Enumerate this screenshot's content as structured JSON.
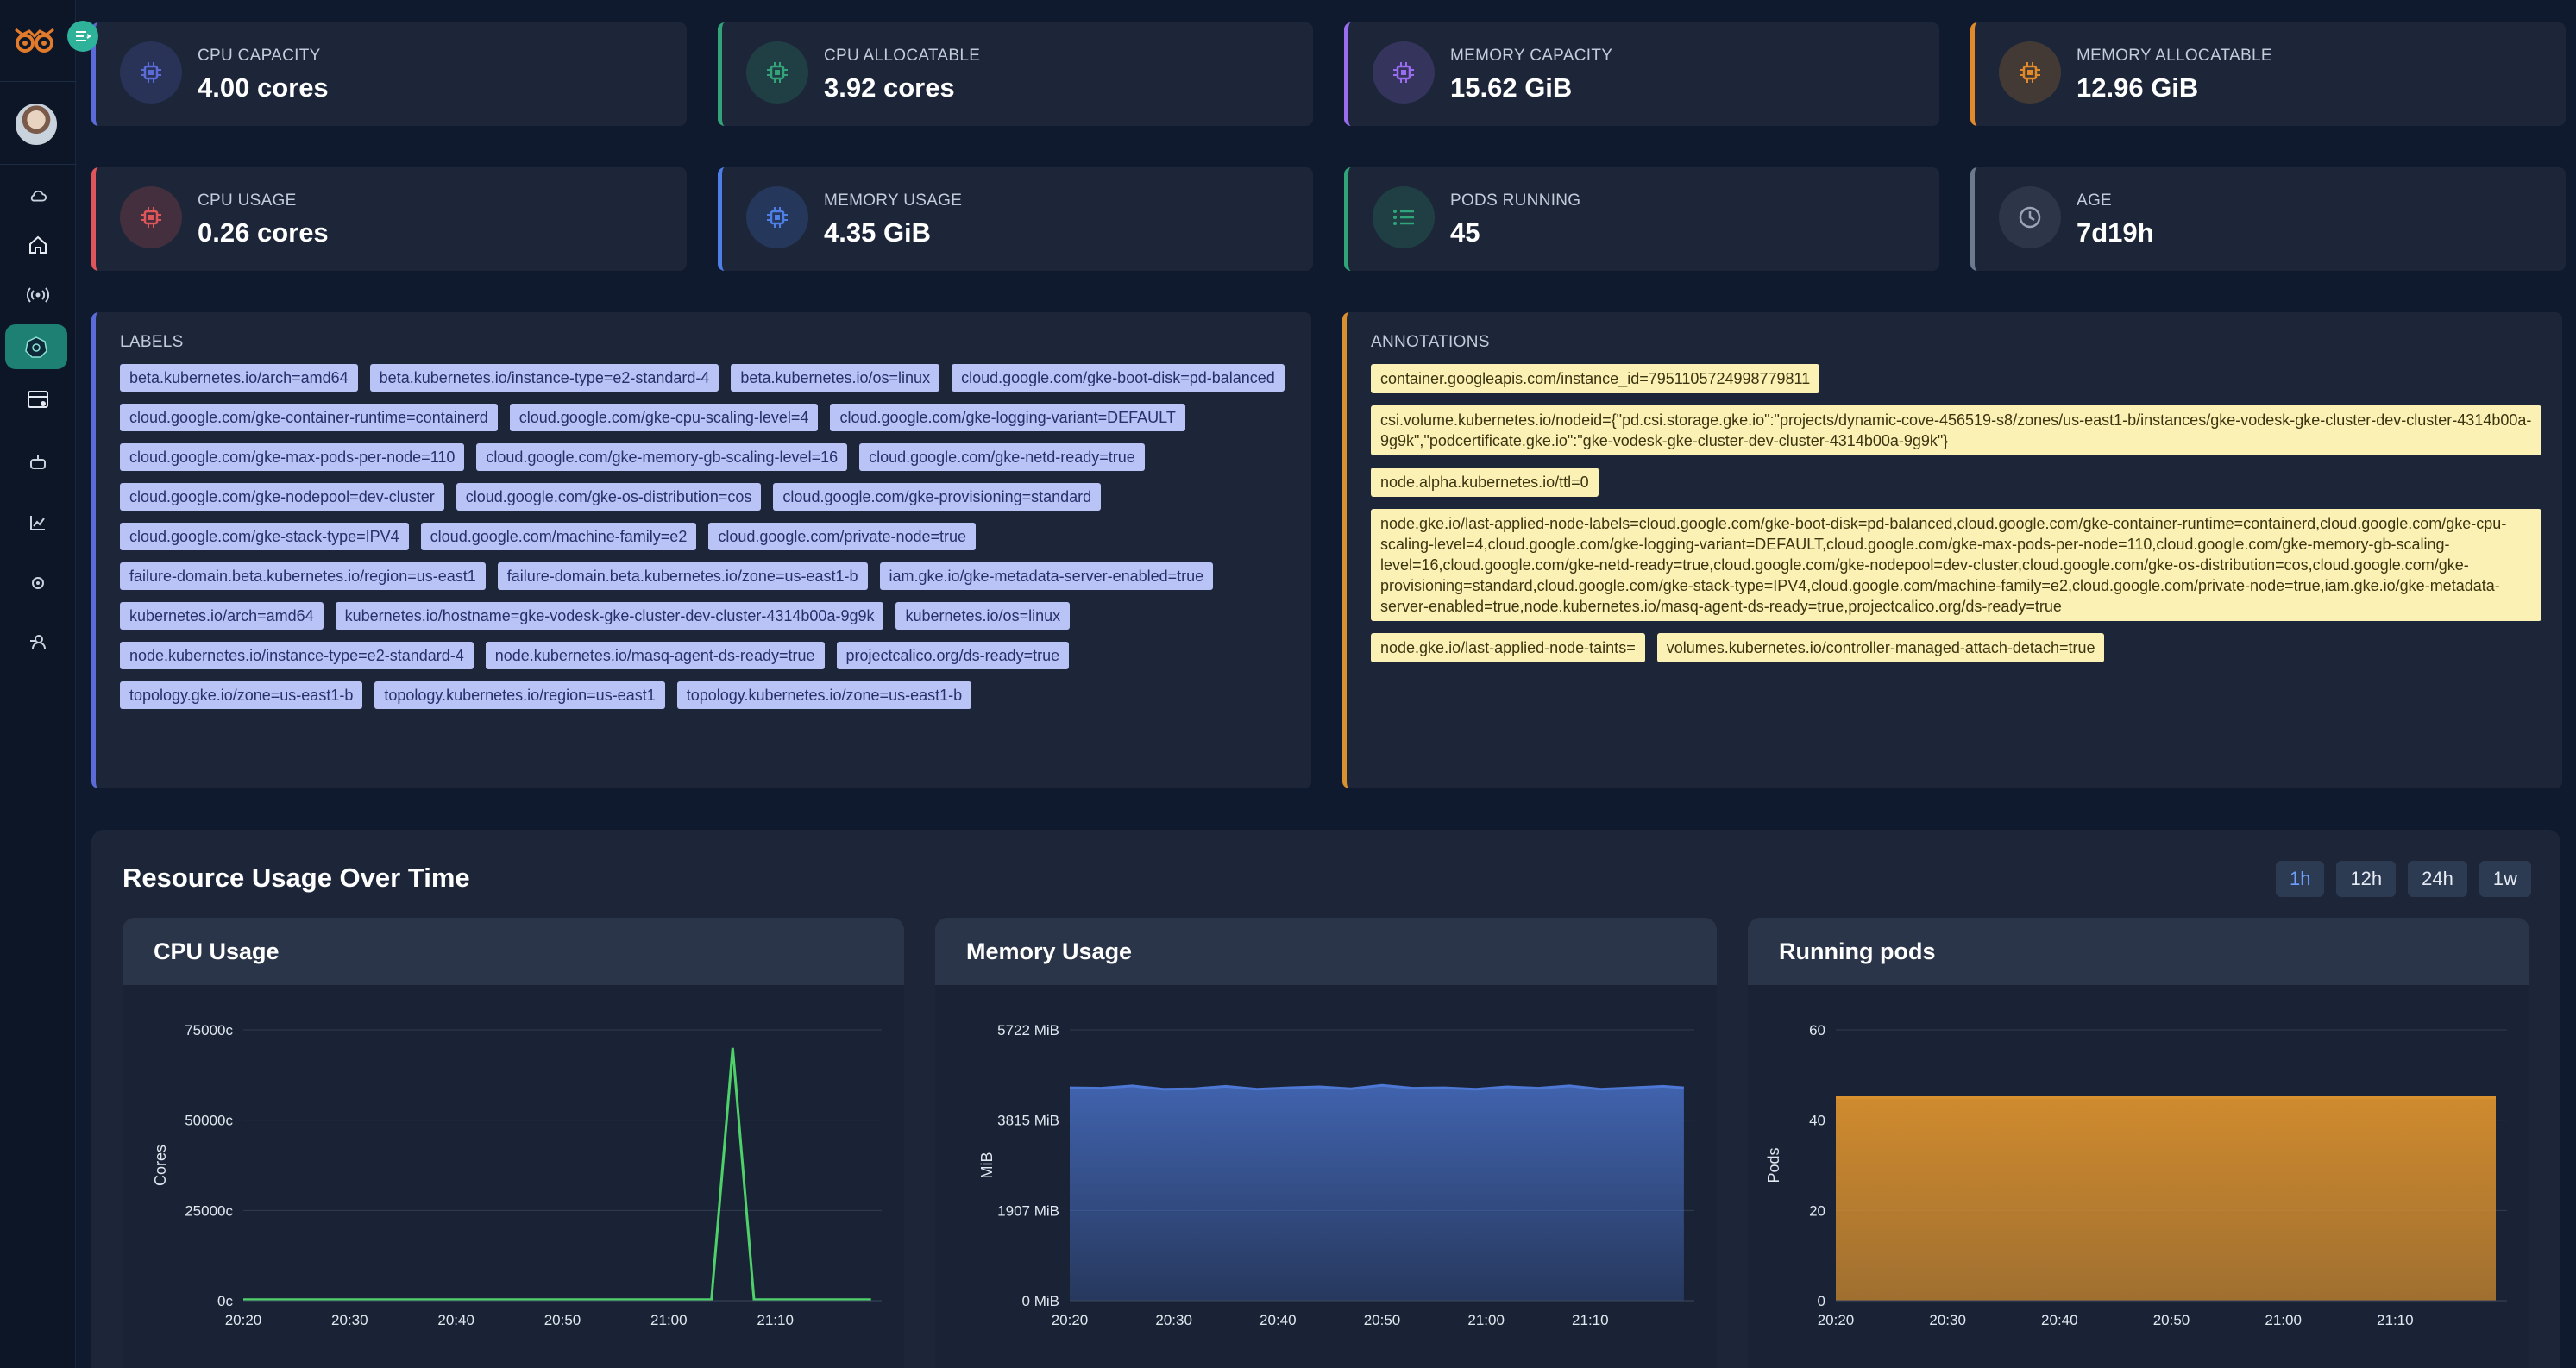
{
  "stats": [
    {
      "label": "CPU CAPACITY",
      "value": "4.00 cores",
      "icon": "chip-icon",
      "color": "#5b6bd8"
    },
    {
      "label": "CPU ALLOCATABLE",
      "value": "3.92 cores",
      "icon": "chip-icon",
      "color": "#34a37a"
    },
    {
      "label": "MEMORY CAPACITY",
      "value": "15.62 GiB",
      "icon": "chip-icon",
      "color": "#9a6cf0"
    },
    {
      "label": "MEMORY ALLOCATABLE",
      "value": "12.96 GiB",
      "icon": "chip-icon",
      "color": "#e08a2c"
    },
    {
      "label": "CPU USAGE",
      "value": "0.26 cores",
      "icon": "chip-icon",
      "color": "#e0555a"
    },
    {
      "label": "MEMORY USAGE",
      "value": "4.35 GiB",
      "icon": "chip-icon",
      "color": "#4d7fe6"
    },
    {
      "label": "PODS RUNNING",
      "value": "45",
      "icon": "list-icon",
      "color": "#2fa579"
    },
    {
      "label": "AGE",
      "value": "7d19h",
      "icon": "clock-icon",
      "color": "#6d7a8e"
    }
  ],
  "labels": {
    "title": "LABELS",
    "items": [
      "beta.kubernetes.io/arch=amd64",
      "beta.kubernetes.io/instance-type=e2-standard-4",
      "beta.kubernetes.io/os=linux",
      "cloud.google.com/gke-boot-disk=pd-balanced",
      "cloud.google.com/gke-container-runtime=containerd",
      "cloud.google.com/gke-cpu-scaling-level=4",
      "cloud.google.com/gke-logging-variant=DEFAULT",
      "cloud.google.com/gke-max-pods-per-node=110",
      "cloud.google.com/gke-memory-gb-scaling-level=16",
      "cloud.google.com/gke-netd-ready=true",
      "cloud.google.com/gke-nodepool=dev-cluster",
      "cloud.google.com/gke-os-distribution=cos",
      "cloud.google.com/gke-provisioning=standard",
      "cloud.google.com/gke-stack-type=IPV4",
      "cloud.google.com/machine-family=e2",
      "cloud.google.com/private-node=true",
      "failure-domain.beta.kubernetes.io/region=us-east1",
      "failure-domain.beta.kubernetes.io/zone=us-east1-b",
      "iam.gke.io/gke-metadata-server-enabled=true",
      "kubernetes.io/arch=amd64",
      "kubernetes.io/hostname=gke-vodesk-gke-cluster-dev-cluster-4314b00a-9g9k",
      "kubernetes.io/os=linux",
      "node.kubernetes.io/instance-type=e2-standard-4",
      "node.kubernetes.io/masq-agent-ds-ready=true",
      "projectcalico.org/ds-ready=true",
      "topology.gke.io/zone=us-east1-b",
      "topology.kubernetes.io/region=us-east1",
      "topology.kubernetes.io/zone=us-east1-b"
    ]
  },
  "annotations": {
    "title": "ANNOTATIONS",
    "items": [
      {
        "text": "container.googleapis.com/instance_id=7951105724998779811",
        "full": false
      },
      {
        "text": "csi.volume.kubernetes.io/nodeid={\"pd.csi.storage.gke.io\":\"projects/dynamic-cove-456519-s8/zones/us-east1-b/instances/gke-vodesk-gke-cluster-dev-cluster-4314b00a-9g9k\",\"podcertificate.gke.io\":\"gke-vodesk-gke-cluster-dev-cluster-4314b00a-9g9k\"}",
        "full": true
      },
      {
        "text": "node.alpha.kubernetes.io/ttl=0",
        "full": false
      },
      {
        "text": "node.gke.io/last-applied-node-labels=cloud.google.com/gke-boot-disk=pd-balanced,cloud.google.com/gke-container-runtime=containerd,cloud.google.com/gke-cpu-scaling-level=4,cloud.google.com/gke-logging-variant=DEFAULT,cloud.google.com/gke-max-pods-per-node=110,cloud.google.com/gke-memory-gb-scaling-level=16,cloud.google.com/gke-netd-ready=true,cloud.google.com/gke-nodepool=dev-cluster,cloud.google.com/gke-os-distribution=cos,cloud.google.com/gke-provisioning=standard,cloud.google.com/gke-stack-type=IPV4,cloud.google.com/machine-family=e2,cloud.google.com/private-node=true,iam.gke.io/gke-metadata-server-enabled=true,node.kubernetes.io/masq-agent-ds-ready=true,projectcalico.org/ds-ready=true",
        "full": true
      },
      {
        "text": "node.gke.io/last-applied-node-taints=",
        "full": false
      },
      {
        "text": "volumes.kubernetes.io/controller-managed-attach-detach=true",
        "full": false
      }
    ]
  },
  "resource": {
    "title": "Resource Usage Over Time",
    "ranges": [
      {
        "label": "1h",
        "active": true
      },
      {
        "label": "12h",
        "active": false
      },
      {
        "label": "24h",
        "active": false
      },
      {
        "label": "1w",
        "active": false
      }
    ]
  },
  "chart_data": [
    {
      "type": "line",
      "title": "CPU Usage",
      "ylabel": "Cores",
      "color": "#4fd16a",
      "ylim": [
        0,
        75000
      ],
      "yticks": [
        {
          "v": 0,
          "label": "0c"
        },
        {
          "v": 25000,
          "label": "25000c"
        },
        {
          "v": 50000,
          "label": "50000c"
        },
        {
          "v": 75000,
          "label": "75000c"
        }
      ],
      "xticks": [
        "20:20",
        "20:30",
        "20:40",
        "20:50",
        "21:00",
        "21:10"
      ],
      "x": [
        "20:20",
        "20:30",
        "20:40",
        "20:50",
        "21:00",
        "21:02",
        "21:04",
        "21:06",
        "21:08",
        "21:10",
        "21:19"
      ],
      "values": [
        300,
        300,
        300,
        300,
        300,
        300,
        300,
        70000,
        300,
        300,
        300
      ]
    },
    {
      "type": "area",
      "title": "Memory Usage",
      "ylabel": "MiB",
      "color": "#4d78d6",
      "ylim": [
        0,
        5722
      ],
      "yticks": [
        {
          "v": 0,
          "label": "0 MiB"
        },
        {
          "v": 1907,
          "label": "1907 MiB"
        },
        {
          "v": 3815,
          "label": "3815 MiB"
        },
        {
          "v": 5722,
          "label": "5722 MiB"
        }
      ],
      "xticks": [
        "20:20",
        "20:30",
        "20:40",
        "20:50",
        "21:00",
        "21:10"
      ],
      "x": [
        "20:20",
        "20:23",
        "20:26",
        "20:29",
        "20:32",
        "20:35",
        "20:38",
        "20:41",
        "20:44",
        "20:47",
        "20:50",
        "20:53",
        "20:56",
        "20:59",
        "21:02",
        "21:05",
        "21:08",
        "21:11",
        "21:14",
        "21:17",
        "21:19"
      ],
      "values": [
        4500,
        4490,
        4540,
        4470,
        4480,
        4530,
        4470,
        4500,
        4520,
        4480,
        4550,
        4490,
        4500,
        4470,
        4520,
        4490,
        4540,
        4470,
        4500,
        4530,
        4500
      ]
    },
    {
      "type": "area",
      "title": "Running pods",
      "ylabel": "Pods",
      "color": "#d9902e",
      "ylim": [
        0,
        60
      ],
      "yticks": [
        {
          "v": 0,
          "label": "0"
        },
        {
          "v": 20,
          "label": "20"
        },
        {
          "v": 40,
          "label": "40"
        },
        {
          "v": 60,
          "label": "60"
        }
      ],
      "xticks": [
        "20:20",
        "20:30",
        "20:40",
        "20:50",
        "21:00",
        "21:10"
      ],
      "x": [
        "20:20",
        "21:19"
      ],
      "values": [
        45,
        45
      ]
    }
  ]
}
